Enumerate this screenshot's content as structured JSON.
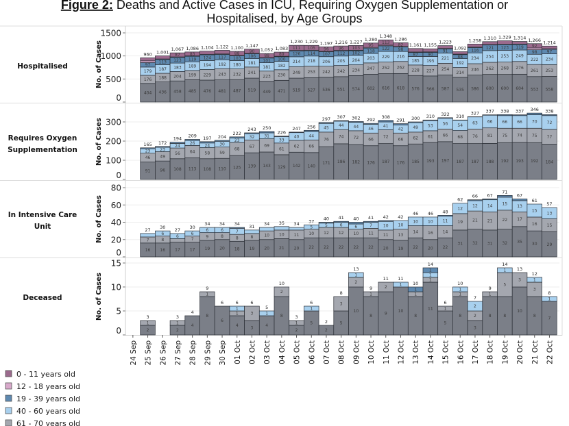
{
  "title": {
    "bold": "Figure 2:",
    "line1": " Deaths and Active Cases in ICU, Requiring Oxygen Supplementation or",
    "line2": "Hospitalised, by Age Groups"
  },
  "legend": [
    {
      "key": "age-0-11",
      "label": "0 - 11 years old",
      "color": "#9B6A8D"
    },
    {
      "key": "age-12-18",
      "label": "12 - 18 years old",
      "color": "#D8A9CB"
    },
    {
      "key": "age-19-39",
      "label": "19 - 39 years old",
      "color": "#5E89B0"
    },
    {
      "key": "age-40-60",
      "label": "40 - 60 years old",
      "color": "#A8D0EE"
    },
    {
      "key": "age-61-70",
      "label": "61 - 70 years old",
      "color": "#A4A7AF"
    }
  ],
  "x_tick_labels": [
    "24 Sep",
    "25 Sep",
    "26 Sep",
    "27 Sep",
    "28 Sep",
    "29 Sep",
    "30 Sep",
    "01 Oct",
    "02 Oct",
    "03 Oct",
    "04 Oct",
    "05 Oct",
    "06 Oct",
    "07 Oct",
    "08 Oct",
    "09 Oct",
    "10 Oct",
    "11 Oct",
    "12 Oct",
    "13 Oct",
    "14 Oct",
    "15 Oct",
    "16 Oct",
    "17 Oct",
    "18 Oct",
    "19 Oct",
    "20 Oct",
    "21 Oct",
    "22 Oct"
  ],
  "chart_data": [
    {
      "key": "hospitalised",
      "type": "bar",
      "stacked": true,
      "title": "Hospitalised",
      "title_lines": [
        "Hospitalised"
      ],
      "ylabel": "No. of Cases",
      "ylim": [
        0,
        1500
      ],
      "yticks": [
        0,
        500,
        1000,
        1500
      ],
      "grid": true,
      "categories": [
        "24 Sep",
        "25 Sep",
        "26 Sep",
        "27 Sep",
        "28 Sep",
        "29 Sep",
        "30 Sep",
        "01 Oct",
        "02 Oct",
        "03 Oct",
        "04 Oct",
        "05 Oct",
        "06 Oct",
        "07 Oct",
        "08 Oct",
        "09 Oct",
        "10 Oct",
        "11 Oct",
        "12 Oct",
        "13 Oct",
        "14 Oct",
        "15 Oct",
        "16 Oct",
        "17 Oct",
        "18 Oct",
        "19 Oct",
        "20 Oct",
        "21 Oct",
        "22 Oct"
      ],
      "totals": [
        null,
        960,
        1001,
        1067,
        1086,
        1104,
        1122,
        1100,
        1147,
        1052,
        1083,
        1230,
        1229,
        1197,
        1216,
        1227,
        1280,
        1348,
        1286,
        1161,
        1155,
        1223,
        1092,
        1258,
        1310,
        1329,
        1314,
        1266,
        1214
      ],
      "series": [
        {
          "key": "age-above-70",
          "name": null,
          "color": "#7B7F88",
          "values": [
            null,
            404,
            436,
            458,
            485,
            476,
            481,
            487,
            519,
            449,
            471,
            519,
            527,
            536,
            551,
            574,
            602,
            616,
            618,
            576,
            566,
            587,
            535,
            586,
            600,
            600,
            604,
            553,
            558
          ]
        },
        {
          "key": "age-61-70",
          "name": "61 - 70 years old",
          "color": "#A4A7AF",
          "values": [
            null,
            176,
            188,
            204,
            199,
            229,
            243,
            232,
            241,
            223,
            230,
            249,
            253,
            242,
            242,
            234,
            247,
            252,
            262,
            228,
            227,
            254,
            214,
            246,
            262,
            268,
            276,
            261,
            253
          ]
        },
        {
          "key": "age-40-60",
          "name": "40 - 60 years old",
          "color": "#A8D0EE",
          "values": [
            null,
            179,
            187,
            183,
            189,
            194,
            192,
            180,
            181,
            181,
            182,
            214,
            218,
            206,
            205,
            204,
            203,
            229,
            216,
            185,
            195,
            221,
            192,
            234,
            254,
            253,
            249,
            222,
            234
          ]
        },
        {
          "key": "age-19-39",
          "name": "19 - 39 years old",
          "color": "#5E89B0",
          "values": [
            null,
            97,
            113,
            123,
            119,
            124,
            117,
            103,
            106,
            101,
            100,
            126,
            114,
            107,
            112,
            102,
            118,
            122,
            98,
            87,
            90,
            91,
            88,
            116,
            121,
            123,
            119,
            98,
            97
          ]
        },
        {
          "key": "age-12-18",
          "name": "12 - 18 years old",
          "color": "#D8A9CB",
          "values": [
            null,
            38,
            11,
            12,
            11,
            12,
            11,
            10,
            10,
            10,
            11,
            11,
            12,
            10,
            10,
            10,
            15,
            16,
            10,
            10,
            10,
            10,
            10,
            10,
            10,
            10,
            10,
            40,
            17
          ]
        },
        {
          "key": "age-0-11",
          "name": "0 - 11 years old",
          "color": "#9B6A8D",
          "values": [
            null,
            66,
            66,
            87,
            83,
            69,
            78,
            88,
            90,
            88,
            89,
            111,
            105,
            96,
            96,
            103,
            95,
            113,
            82,
            75,
            67,
            60,
            53,
            66,
            63,
            75,
            56,
            92,
            55
          ]
        }
      ]
    },
    {
      "key": "oxygen",
      "type": "bar",
      "stacked": true,
      "title": "Requires Oxygen Supplementation",
      "title_lines": [
        "Requires Oxygen",
        "Supplementation"
      ],
      "ylabel": "No. of Cases",
      "ylim": [
        0,
        300
      ],
      "yticks": [
        0,
        100,
        200,
        300
      ],
      "grid": true,
      "categories": [
        "24 Sep",
        "25 Sep",
        "26 Sep",
        "27 Sep",
        "28 Sep",
        "29 Sep",
        "30 Sep",
        "01 Oct",
        "02 Oct",
        "03 Oct",
        "04 Oct",
        "05 Oct",
        "06 Oct",
        "07 Oct",
        "08 Oct",
        "09 Oct",
        "10 Oct",
        "11 Oct",
        "12 Oct",
        "13 Oct",
        "14 Oct",
        "15 Oct",
        "16 Oct",
        "17 Oct",
        "18 Oct",
        "19 Oct",
        "20 Oct",
        "21 Oct",
        "22 Oct"
      ],
      "totals": [
        null,
        165,
        172,
        194,
        209,
        197,
        204,
        222,
        243,
        250,
        226,
        247,
        256,
        297,
        307,
        302,
        292,
        308,
        291,
        300,
        310,
        322,
        310,
        327,
        337,
        338,
        337,
        346,
        338
      ],
      "series": [
        {
          "key": "age-above-70",
          "name": null,
          "color": "#7B7F88",
          "values": [
            null,
            91,
            96,
            108,
            113,
            108,
            110,
            125,
            139,
            143,
            129,
            142,
            140,
            171,
            186,
            182,
            176,
            187,
            176,
            185,
            193,
            197,
            187,
            187,
            188,
            192,
            193,
            192,
            184
          ]
        },
        {
          "key": "age-61-70",
          "name": "61 - 70 years old",
          "color": "#A4A7AF",
          "values": [
            null,
            46,
            49,
            56,
            64,
            58,
            59,
            68,
            67,
            69,
            61,
            62,
            66,
            76,
            74,
            72,
            66,
            72,
            66,
            62,
            61,
            66,
            68,
            76,
            81,
            75,
            74,
            75,
            77
          ]
        },
        {
          "key": "age-40-60",
          "name": "40 - 60 years old",
          "color": "#A8D0EE",
          "values": [
            null,
            23,
            23,
            24,
            26,
            24,
            30,
            23,
            32,
            31,
            33,
            40,
            44,
            45,
            44,
            44,
            46,
            41,
            42,
            49,
            53,
            56,
            54,
            63,
            66,
            66,
            66,
            70,
            72
          ]
        },
        {
          "key": "age-19-39",
          "name": "19 - 39 years old",
          "color": "#5E89B0",
          "values": [
            null,
            5,
            4,
            6,
            6,
            7,
            5,
            6,
            5,
            7,
            3,
            3,
            6,
            5,
            3,
            4,
            4,
            8,
            7,
            4,
            3,
            3,
            1,
            1,
            2,
            5,
            4,
            9,
            5
          ]
        }
      ]
    },
    {
      "key": "icu",
      "type": "bar",
      "stacked": true,
      "title": "In Intensive Care Unit",
      "title_lines": [
        "In Intensive Care",
        "Unit"
      ],
      "ylabel": "No. of Cases",
      "ylim": [
        0,
        80
      ],
      "yticks": [
        0,
        20,
        40,
        60,
        80
      ],
      "grid": true,
      "categories": [
        "24 Sep",
        "25 Sep",
        "26 Sep",
        "27 Sep",
        "28 Sep",
        "29 Sep",
        "30 Sep",
        "01 Oct",
        "02 Oct",
        "03 Oct",
        "04 Oct",
        "05 Oct",
        "06 Oct",
        "07 Oct",
        "08 Oct",
        "09 Oct",
        "10 Oct",
        "11 Oct",
        "12 Oct",
        "13 Oct",
        "14 Oct",
        "15 Oct",
        "16 Oct",
        "17 Oct",
        "18 Oct",
        "19 Oct",
        "20 Oct",
        "21 Oct",
        "22 Oct"
      ],
      "totals": [
        null,
        27,
        30,
        27,
        30,
        34,
        34,
        34,
        31,
        34,
        35,
        34,
        37,
        40,
        41,
        40,
        41,
        42,
        42,
        46,
        46,
        48,
        62,
        66,
        67,
        71,
        67,
        61,
        57
      ],
      "series": [
        {
          "key": "age-above-70",
          "name": null,
          "color": "#7B7F88",
          "values": [
            null,
            16,
            16,
            17,
            17,
            19,
            20,
            18,
            19,
            20,
            21,
            20,
            22,
            22,
            22,
            22,
            22,
            20,
            19,
            22,
            20,
            22,
            31,
            32,
            31,
            32,
            35,
            30,
            29
          ]
        },
        {
          "key": "age-61-70",
          "name": "61 - 70 years old",
          "color": "#A4A7AF",
          "values": [
            null,
            7,
            8,
            4,
            7,
            9,
            8,
            8,
            8,
            10,
            10,
            11,
            10,
            12,
            12,
            10,
            11,
            11,
            13,
            14,
            16,
            14,
            19,
            21,
            21,
            22,
            17,
            16,
            15
          ]
        },
        {
          "key": "age-40-60",
          "name": "40 - 60 years old",
          "color": "#A8D0EE",
          "values": [
            null,
            4,
            6,
            6,
            6,
            6,
            6,
            7,
            4,
            4,
            4,
            3,
            5,
            5,
            6,
            6,
            7,
            10,
            10,
            10,
            10,
            11,
            12,
            12,
            14,
            15,
            13,
            15,
            13
          ]
        },
        {
          "key": "age-19-39",
          "name": "19 - 39 years old",
          "color": "#5E89B0",
          "values": [
            null,
            0,
            0,
            0,
            0,
            0,
            0,
            1,
            0,
            0,
            0,
            0,
            0,
            1,
            1,
            2,
            1,
            1,
            0,
            0,
            0,
            1,
            0,
            1,
            1,
            2,
            2,
            0,
            0
          ]
        }
      ]
    },
    {
      "key": "deceased",
      "type": "bar",
      "stacked": true,
      "title": "Deceased",
      "title_lines": [
        "Deceased"
      ],
      "ylabel": "No. of Cases",
      "ylim": [
        0,
        15
      ],
      "yticks": [
        0,
        5,
        10,
        15
      ],
      "grid": true,
      "categories": [
        "24 Sep",
        "25 Sep",
        "26 Sep",
        "27 Sep",
        "28 Sep",
        "29 Sep",
        "30 Sep",
        "01 Oct",
        "02 Oct",
        "03 Oct",
        "04 Oct",
        "05 Oct",
        "06 Oct",
        "07 Oct",
        "08 Oct",
        "09 Oct",
        "10 Oct",
        "11 Oct",
        "12 Oct",
        "13 Oct",
        "14 Oct",
        "15 Oct",
        "16 Oct",
        "17 Oct",
        "18 Oct",
        "19 Oct",
        "20 Oct",
        "21 Oct",
        "22 Oct"
      ],
      "totals": [
        null,
        3,
        0,
        3,
        4,
        9,
        6,
        6,
        6,
        5,
        10,
        3,
        6,
        2,
        8,
        13,
        9,
        11,
        11,
        10,
        14,
        6,
        10,
        7,
        9,
        14,
        13,
        12,
        8
      ],
      "series": [
        {
          "key": "age-above-70",
          "name": null,
          "color": "#7B7F88",
          "values": [
            null,
            2,
            0,
            2,
            4,
            8,
            6,
            4,
            3,
            4,
            8,
            2,
            5,
            2,
            5,
            10,
            8,
            9,
            10,
            8,
            11,
            5,
            8,
            3,
            8,
            8,
            10,
            8,
            7
          ]
        },
        {
          "key": "age-61-70",
          "name": "61 - 70 years old",
          "color": "#A4A7AF",
          "values": [
            null,
            1,
            0,
            1,
            0,
            1,
            0,
            1,
            3,
            0,
            2,
            1,
            0,
            0,
            3,
            2,
            1,
            2,
            0,
            1,
            1,
            1,
            1,
            2,
            1,
            5,
            3,
            3,
            0
          ]
        },
        {
          "key": "age-40-60",
          "name": "40 - 60 years old",
          "color": "#A8D0EE",
          "values": [
            null,
            0,
            0,
            0,
            0,
            0,
            0,
            1,
            0,
            1,
            0,
            0,
            1,
            0,
            0,
            1,
            0,
            0,
            1,
            0,
            1,
            0,
            1,
            2,
            0,
            1,
            0,
            1,
            1
          ]
        },
        {
          "key": "age-19-39",
          "name": "19 - 39 years old",
          "color": "#5E89B0",
          "values": [
            null,
            0,
            0,
            0,
            0,
            0,
            0,
            0,
            0,
            0,
            0,
            0,
            0,
            0,
            0,
            0,
            0,
            0,
            0,
            1,
            1,
            0,
            0,
            0,
            0,
            0,
            0,
            0,
            0
          ]
        }
      ]
    }
  ]
}
